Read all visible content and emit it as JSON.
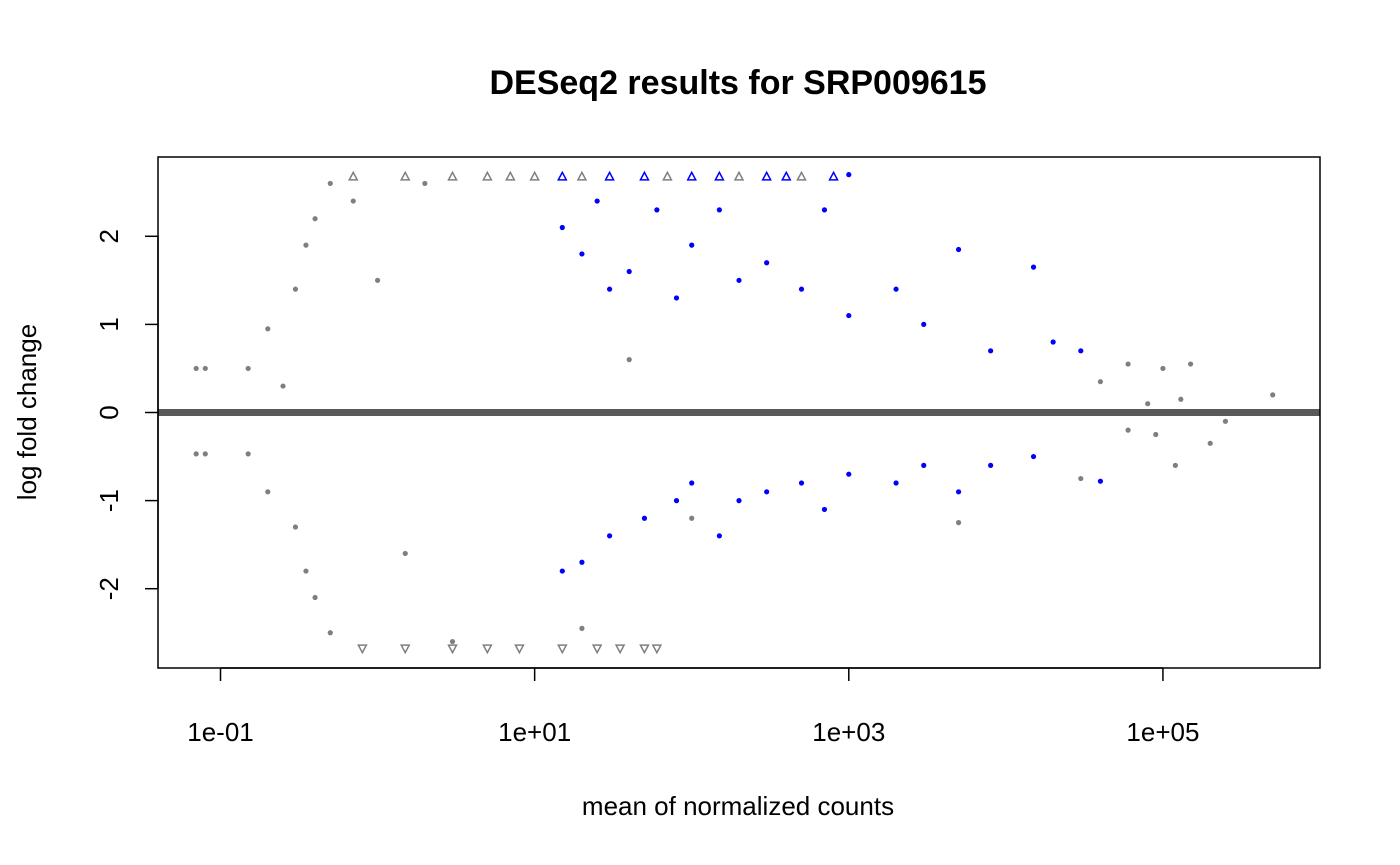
{
  "chart_data": {
    "type": "scatter",
    "title": "DESeq2 results for SRP009615",
    "xlabel": "mean of normalized counts",
    "ylabel": "log fold change",
    "x_scale": "log10",
    "xlim": [
      0.04,
      1000000
    ],
    "ylim": [
      -2.9,
      2.9
    ],
    "x_ticks": [
      {
        "value": 0.1,
        "label": "1e-01"
      },
      {
        "value": 10,
        "label": "1e+01"
      },
      {
        "value": 1000,
        "label": "1e+03"
      },
      {
        "value": 100000,
        "label": "1e+05"
      }
    ],
    "y_ticks": [
      {
        "value": -2,
        "label": "-2"
      },
      {
        "value": -1,
        "label": "-1"
      },
      {
        "value": 0,
        "label": "0"
      },
      {
        "value": 1,
        "label": "1"
      },
      {
        "value": 2,
        "label": "2"
      }
    ],
    "grid": false,
    "legend": "none",
    "reference_line": {
      "y": 0,
      "color": "#595959"
    },
    "colors": {
      "not_significant": "#7f7f7f",
      "significant": "#0000ff"
    },
    "series": [
      {
        "points": [
          [
            0.07,
            0.5
          ],
          [
            0.08,
            0.5
          ],
          [
            0.07,
            -0.47
          ],
          [
            0.08,
            -0.47
          ],
          [
            0.15,
            0.5
          ],
          [
            0.15,
            -0.47
          ],
          [
            0.2,
            0.95
          ],
          [
            0.2,
            -0.9
          ],
          [
            0.25,
            0.3
          ],
          [
            0.3,
            1.4
          ],
          [
            0.3,
            -1.3
          ],
          [
            0.35,
            1.9
          ],
          [
            0.35,
            -1.8
          ],
          [
            0.4,
            2.2
          ],
          [
            0.4,
            -2.1
          ],
          [
            0.5,
            2.6
          ],
          [
            0.5,
            -2.5
          ],
          [
            0.7,
            2.4
          ],
          [
            1.0,
            1.5
          ],
          [
            1.5,
            -1.6
          ],
          [
            2.0,
            2.6
          ],
          [
            3.0,
            -2.6
          ],
          [
            20,
            -2.45
          ],
          [
            40,
            0.6
          ],
          [
            100,
            -1.2
          ],
          [
            5000,
            -1.25
          ],
          [
            30000,
            -0.75
          ],
          [
            60000,
            0.55
          ],
          [
            100000,
            0.5
          ],
          [
            150000,
            0.55
          ],
          [
            200000,
            -0.35
          ],
          [
            120000,
            -0.6
          ],
          [
            500000,
            0.2
          ],
          [
            80000,
            0.1
          ],
          [
            40000,
            0.35
          ],
          [
            60000,
            -0.2
          ],
          [
            90000,
            -0.25
          ],
          [
            130000,
            0.15
          ],
          [
            250000,
            -0.1
          ]
        ]
      },
      {
        "points": [
          [
            15,
            2.1
          ],
          [
            20,
            1.8
          ],
          [
            25,
            2.4
          ],
          [
            30,
            1.4
          ],
          [
            40,
            1.6
          ],
          [
            60,
            2.3
          ],
          [
            80,
            1.3
          ],
          [
            100,
            1.9
          ],
          [
            150,
            2.3
          ],
          [
            200,
            1.5
          ],
          [
            300,
            1.7
          ],
          [
            500,
            1.4
          ],
          [
            700,
            2.3
          ],
          [
            1000,
            2.7
          ],
          [
            1000,
            1.1
          ],
          [
            2000,
            1.4
          ],
          [
            3000,
            1.0
          ],
          [
            5000,
            1.85
          ],
          [
            8000,
            0.7
          ],
          [
            15000,
            1.65
          ],
          [
            20000,
            0.8
          ],
          [
            30000,
            0.7
          ],
          [
            15,
            -1.8
          ],
          [
            20,
            -1.7
          ],
          [
            30,
            -1.4
          ],
          [
            50,
            -1.2
          ],
          [
            80,
            -1.0
          ],
          [
            100,
            -0.8
          ],
          [
            150,
            -1.4
          ],
          [
            200,
            -1.0
          ],
          [
            300,
            -0.9
          ],
          [
            500,
            -0.8
          ],
          [
            700,
            -1.1
          ],
          [
            1000,
            -0.7
          ],
          [
            2000,
            -0.8
          ],
          [
            3000,
            -0.6
          ],
          [
            5000,
            -0.9
          ],
          [
            8000,
            -0.6
          ],
          [
            15000,
            -0.5
          ],
          [
            40000,
            -0.78
          ]
        ]
      }
    ],
    "out_of_range_markers": {
      "top": {
        "y": 2.68,
        "x": [
          0.7,
          1.5,
          3,
          5,
          7,
          10,
          15,
          20,
          30,
          50,
          70,
          100,
          150,
          200,
          300,
          400,
          500,
          800
        ]
      },
      "bottom": {
        "y": -2.68,
        "x": [
          0.8,
          1.5,
          3,
          5,
          8,
          15,
          25,
          35,
          50,
          60
        ]
      }
    }
  }
}
